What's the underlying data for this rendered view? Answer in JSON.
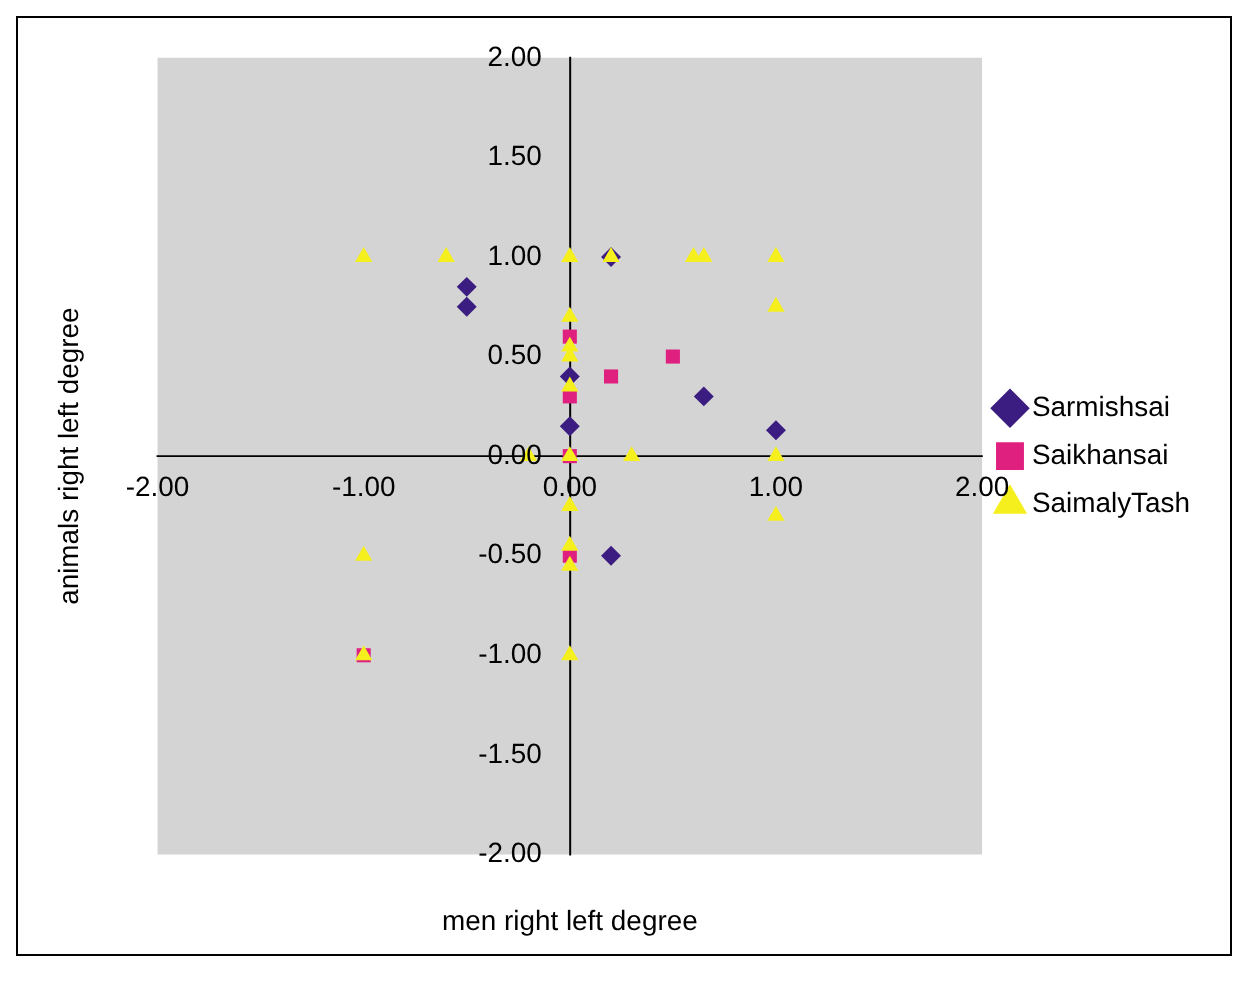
{
  "chart_data": {
    "type": "scatter",
    "xlabel": "men right left degree",
    "ylabel": "animals right left degree",
    "xlim": [
      -2,
      2
    ],
    "ylim": [
      -2,
      2
    ],
    "xticks": [
      {
        "value": -2,
        "label": "-2.00"
      },
      {
        "value": -1,
        "label": "-1.00"
      },
      {
        "value": 0,
        "label": "0.00"
      },
      {
        "value": 1,
        "label": "1.00"
      },
      {
        "value": 2,
        "label": "2.00"
      }
    ],
    "yticks": [
      {
        "value": -2,
        "label": "-2.00"
      },
      {
        "value": -1.5,
        "label": "-1.50"
      },
      {
        "value": -1,
        "label": "-1.00"
      },
      {
        "value": -0.5,
        "label": "-0.50"
      },
      {
        "value": 0,
        "label": "0.00"
      },
      {
        "value": 0.5,
        "label": "0.50"
      },
      {
        "value": 1,
        "label": "1.00"
      },
      {
        "value": 1.5,
        "label": "1.50"
      },
      {
        "value": 2,
        "label": "2.00"
      }
    ],
    "grid": false,
    "legend": "right",
    "series": [
      {
        "name": "Sarmishsai",
        "color": "#3b1c80",
        "marker": "diamond",
        "x": [
          -0.5,
          -0.5,
          0,
          0,
          0.2,
          0.65,
          1,
          0.2
        ],
        "values": [
          0.85,
          0.75,
          0.4,
          0.15,
          1,
          0.3,
          0.13,
          -0.5
        ]
      },
      {
        "name": "Saikhansai",
        "color": "#e0207f",
        "marker": "square",
        "x": [
          0,
          0,
          0,
          0.2,
          0.5,
          0,
          -1
        ],
        "values": [
          0.6,
          0.3,
          0,
          0.4,
          0.5,
          -0.5,
          -1
        ]
      },
      {
        "name": "SaimalyTash",
        "color": "#f5ef1e",
        "marker": "triangle",
        "x": [
          -1,
          -0.6,
          0,
          0.2,
          0.6,
          0.65,
          1,
          1,
          0,
          0,
          0,
          0,
          -0.2,
          0,
          0.3,
          1,
          1,
          -1,
          0,
          0,
          0,
          -1,
          0
        ],
        "values": [
          1,
          1,
          1,
          1,
          1,
          1,
          1,
          0.75,
          0.7,
          0.55,
          0.5,
          0.35,
          0,
          0,
          0,
          0,
          -0.3,
          -0.5,
          -0.45,
          -0.55,
          -0.25,
          -1,
          -1
        ]
      }
    ]
  }
}
